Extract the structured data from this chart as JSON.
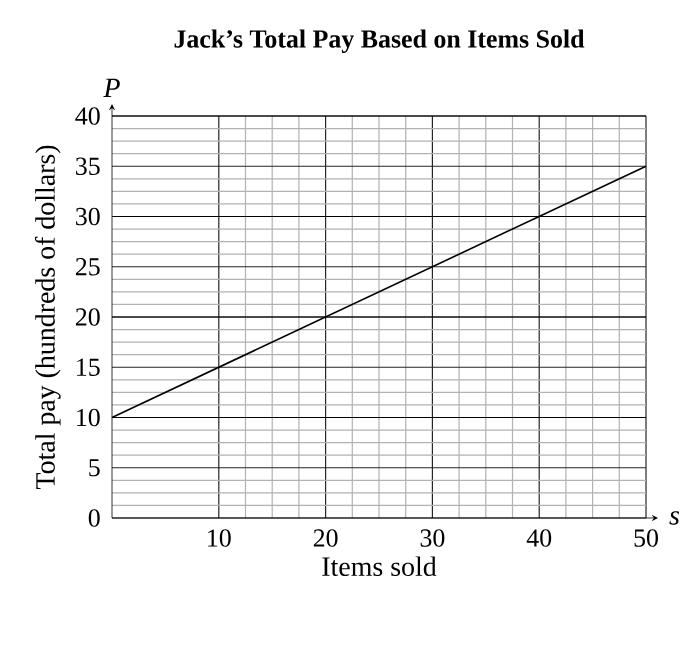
{
  "chart_data": {
    "type": "line",
    "title": "Jack’s Total Pay Based on Items Sold",
    "xlabel": "Items sold",
    "ylabel": "Total pay (hundreds of dollars)",
    "annotations": [
      "P",
      "s"
    ],
    "x": [
      0,
      50
    ],
    "series": [
      {
        "color": "#000000",
        "values": [
          10,
          35
        ]
      }
    ],
    "xlim": [
      0,
      50
    ],
    "ylim": [
      0,
      40
    ],
    "xticks": [
      10,
      20,
      30,
      40,
      50
    ],
    "yticks": [
      0,
      5,
      10,
      15,
      20,
      25,
      30,
      35,
      40
    ],
    "grid": true,
    "marker": "none",
    "line_style": "solid"
  }
}
